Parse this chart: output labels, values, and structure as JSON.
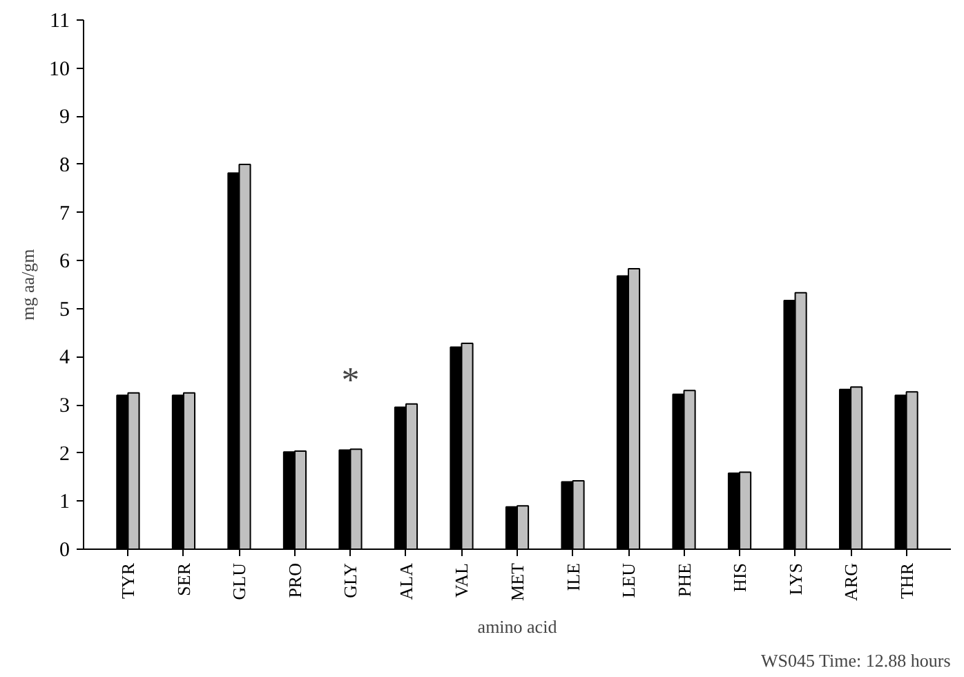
{
  "chart_data": {
    "type": "bar",
    "xlabel": "amino acid",
    "ylabel": "mg aa/gm",
    "categories": [
      "TYR",
      "SER",
      "GLU",
      "PRO",
      "GLY",
      "ALA",
      "VAL",
      "MET",
      "ILE",
      "LEU",
      "PHE",
      "HIS",
      "LYS",
      "ARG",
      "THR"
    ],
    "series": [
      {
        "color": "#000000",
        "values": [
          3.2,
          3.2,
          7.82,
          2.02,
          2.06,
          2.95,
          4.2,
          0.88,
          1.4,
          5.68,
          3.22,
          1.58,
          5.17,
          3.32,
          3.2
        ]
      },
      {
        "color": "#c0c0c0",
        "values": [
          3.25,
          3.25,
          8.0,
          2.04,
          2.08,
          3.02,
          4.28,
          0.9,
          1.42,
          5.83,
          3.3,
          1.6,
          5.33,
          3.37,
          3.27
        ]
      }
    ],
    "ylim": [
      0,
      11
    ],
    "yticks": [
      0,
      1,
      2,
      3,
      4,
      5,
      6,
      7,
      8,
      9,
      10,
      11
    ],
    "grid": false,
    "annotations": [
      {
        "text": "*",
        "x": "GLY",
        "y": 2.08
      },
      "WS045 Time: 12.88 hours"
    ]
  }
}
